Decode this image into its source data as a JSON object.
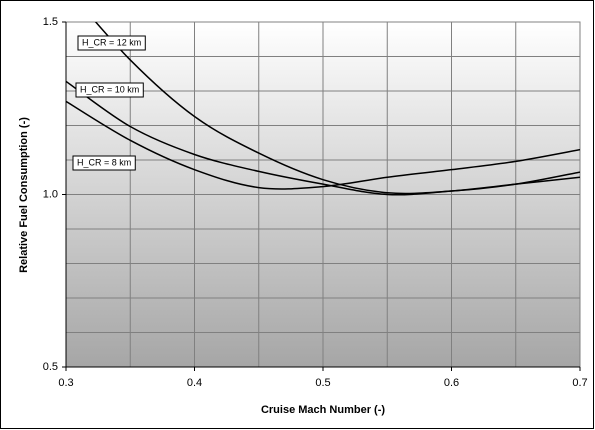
{
  "chart_data": {
    "type": "line",
    "x_label": "Cruise Mach Number (-)",
    "y_label": "Relative Fuel Consumption (-)",
    "x": [
      0.3,
      0.35,
      0.4,
      0.45,
      0.5,
      0.55,
      0.6,
      0.65,
      0.7
    ],
    "series": [
      {
        "name": "H_CR = 12 km",
        "color": "#000000",
        "values": [
          1.6,
          1.39,
          1.226,
          1.12,
          1.043,
          1.005,
          1.01,
          1.03,
          1.065
        ]
      },
      {
        "name": "H_CR = 10 km",
        "color": "#000000",
        "values": [
          1.328,
          1.197,
          1.116,
          1.067,
          1.03,
          1.0,
          1.01,
          1.03,
          1.05
        ]
      },
      {
        "name": "H_CR = 8 km",
        "color": "#000000",
        "values": [
          1.27,
          1.157,
          1.072,
          1.02,
          1.023,
          1.05,
          1.072,
          1.096,
          1.13
        ]
      }
    ],
    "xlim": [
      0.3,
      0.7
    ],
    "ylim": [
      0.5,
      1.5
    ],
    "xticks": [
      0.3,
      0.4,
      0.5,
      0.6,
      0.7
    ],
    "yticks": [
      0.5,
      {
        "value": 1,
        "label": "1.0"
      },
      1.5
    ],
    "xgrid": [
      0.35,
      0.4,
      0.45,
      0.5,
      0.55,
      0.6,
      0.65
    ],
    "ygrid": [
      0.6,
      0.7,
      0.8,
      0.9,
      1.1,
      1.2,
      1.3,
      1.4
    ],
    "grid": true
  }
}
